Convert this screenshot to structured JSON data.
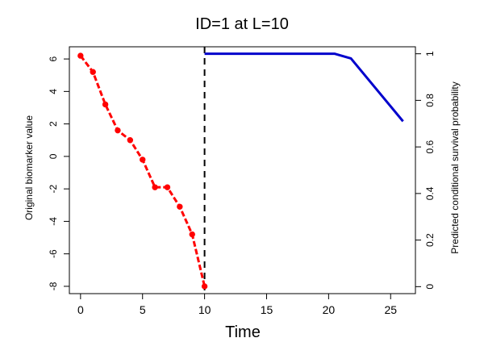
{
  "chart_data": {
    "type": "line",
    "title": "ID=1 at L=10",
    "xlabel": "Time",
    "ylabel_left": "Original biomarker value",
    "ylabel_right": "Predicted conditional survival probability",
    "x_ticks": [
      0,
      5,
      10,
      15,
      20,
      25
    ],
    "x_range": [
      -0.9,
      27
    ],
    "left_y_ticks": [
      6,
      4,
      2,
      0,
      -2,
      -4,
      -6,
      -8
    ],
    "left_y_range": [
      -8.45,
      6.75
    ],
    "right_y_ticks": [
      1,
      0.8,
      0.6,
      0.4,
      0.2,
      0
    ],
    "right_y_range": [
      -0.03,
      1.03
    ],
    "landmark_x": 10,
    "colors": {
      "biomarker": "#ff0000",
      "survival": "#0000cc",
      "landmark": "#000000"
    },
    "series": [
      {
        "axis": "left",
        "style": "dashed-points",
        "x": [
          0,
          1,
          2,
          3,
          4,
          5,
          6,
          7,
          8,
          9,
          10
        ],
        "y": [
          6.2,
          5.2,
          3.2,
          1.6,
          1.0,
          -0.2,
          -1.9,
          -1.9,
          -3.1,
          -4.8,
          -8.0
        ]
      },
      {
        "axis": "right",
        "style": "solid",
        "x": [
          10,
          20.5,
          21.8,
          26
        ],
        "y": [
          1.0,
          1.0,
          0.98,
          0.71
        ]
      }
    ]
  }
}
